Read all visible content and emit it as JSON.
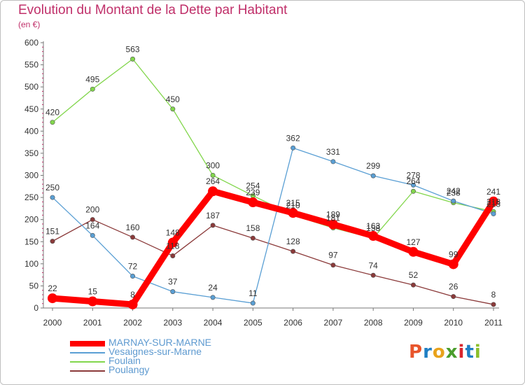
{
  "title": "Evolution du Montant de la Dette par Habitant",
  "subtitle": "(en €)",
  "logo": {
    "text": "Proxiti",
    "letter_colors": [
      "#e8552b",
      "#1f7fc4",
      "#e8a21b",
      "#4a9d2c",
      "#d8262e",
      "#1f7fc4",
      "#8bbf2a"
    ]
  },
  "chart_data": {
    "type": "line",
    "title": "Evolution du Montant de la Dette par Habitant",
    "subtitle": "(en €)",
    "x": [
      "2000",
      "2001",
      "2002",
      "2003",
      "2004",
      "2005",
      "2006",
      "2007",
      "2008",
      "2009",
      "2010",
      "2011"
    ],
    "ylim": [
      0,
      600
    ],
    "yticks": [
      0,
      50,
      100,
      150,
      200,
      250,
      300,
      350,
      400,
      450,
      500,
      550,
      600
    ],
    "grid": false,
    "legend_position": "bottom-left",
    "series": [
      {
        "name": "MARNAY-SUR-MARNE",
        "color": "#ff0000",
        "values": [
          22,
          15,
          8,
          148,
          264,
          239,
          215,
          189,
          163,
          127,
          99,
          241
        ],
        "emphasis": true
      },
      {
        "name": "Vesaignes-sur-Marne",
        "color": "#5a9fd4",
        "values": [
          250,
          164,
          72,
          37,
          24,
          11,
          362,
          331,
          299,
          278,
          242,
          213
        ],
        "emphasis": false
      },
      {
        "name": "Foulain",
        "color": "#82d64c",
        "values": [
          420,
          495,
          563,
          450,
          300,
          254,
          210,
          181,
          158,
          264,
          238,
          218
        ],
        "emphasis": false
      },
      {
        "name": "Poulangy",
        "color": "#8b3a3a",
        "values": [
          151,
          200,
          160,
          118,
          187,
          158,
          128,
          97,
          74,
          52,
          26,
          8
        ],
        "emphasis": false
      }
    ]
  }
}
